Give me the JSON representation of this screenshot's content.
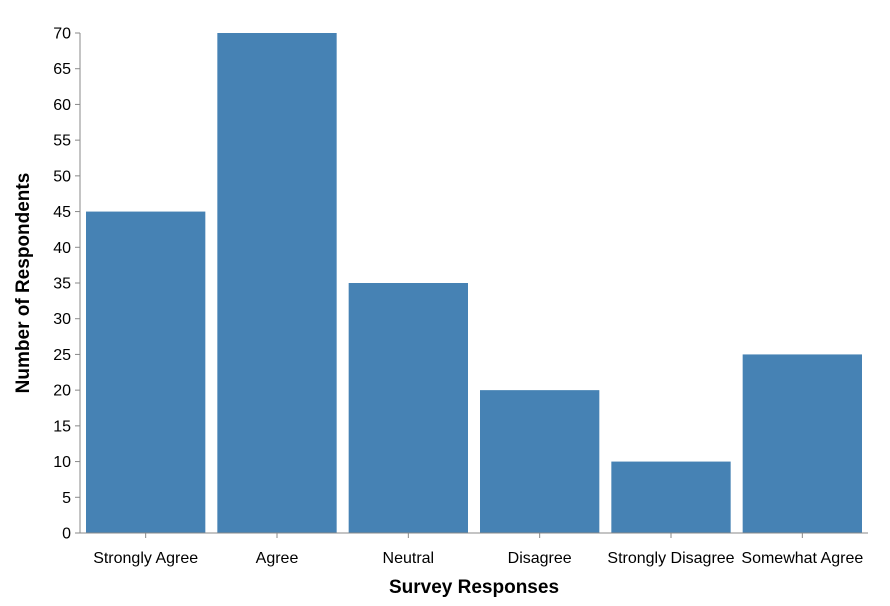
{
  "chart_data": {
    "type": "bar",
    "categories": [
      "Strongly Agree",
      "Agree",
      "Neutral",
      "Disagree",
      "Strongly Disagree",
      "Somewhat Agree"
    ],
    "values": [
      45,
      70,
      35,
      20,
      10,
      25
    ],
    "xlabel": "Survey Responses",
    "ylabel": "Number of Respondents",
    "ylim": [
      0,
      70
    ],
    "yticks": [
      0,
      5,
      10,
      15,
      20,
      25,
      30,
      35,
      40,
      45,
      50,
      55,
      60,
      65,
      70
    ],
    "grid": false,
    "bar_color": "#4682b4",
    "axis_color": "#888888"
  }
}
